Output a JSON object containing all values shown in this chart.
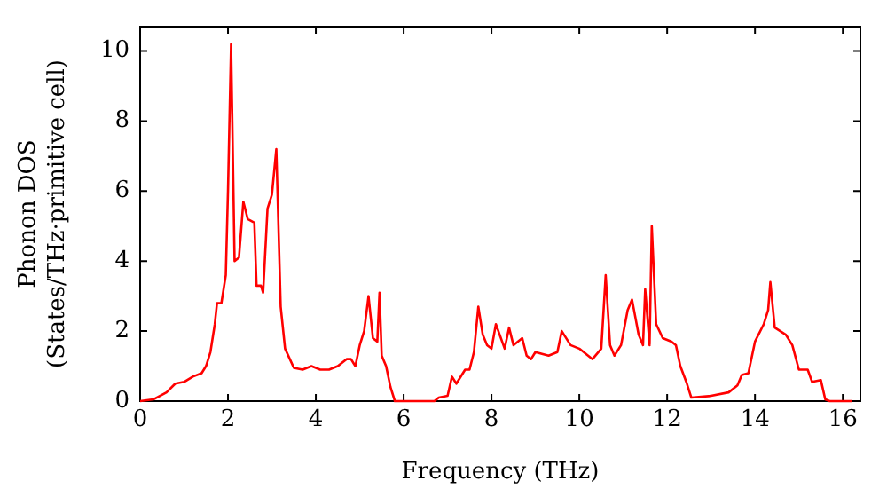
{
  "chart_data": {
    "type": "line",
    "xlabel": "Frequency (THz)",
    "ylabel": "Phonon DOS\n(States/THz·primitive cell)",
    "xlim": [
      0,
      16.4
    ],
    "ylim": [
      0,
      10.7
    ],
    "xticks": [
      0,
      2,
      4,
      6,
      8,
      10,
      12,
      14,
      16
    ],
    "yticks": [
      0,
      2,
      4,
      6,
      8,
      10
    ],
    "grid": false,
    "legend": false,
    "marker": "none",
    "line_style": "solid",
    "series": [
      {
        "color": "#ff0000",
        "x": [
          0,
          0.3,
          0.6,
          0.8,
          1.0,
          1.2,
          1.4,
          1.5,
          1.6,
          1.7,
          1.75,
          1.85,
          1.95,
          2.0,
          2.07,
          2.15,
          2.25,
          2.35,
          2.45,
          2.6,
          2.65,
          2.75,
          2.8,
          2.9,
          3.0,
          3.1,
          3.2,
          3.3,
          3.5,
          3.7,
          3.9,
          4.1,
          4.3,
          4.5,
          4.7,
          4.8,
          4.9,
          5.0,
          5.1,
          5.2,
          5.3,
          5.4,
          5.45,
          5.5,
          5.6,
          5.7,
          5.8,
          6.7,
          6.8,
          7.0,
          7.1,
          7.2,
          7.4,
          7.5,
          7.6,
          7.7,
          7.8,
          7.9,
          8.0,
          8.1,
          8.3,
          8.4,
          8.5,
          8.7,
          8.8,
          8.9,
          9.0,
          9.3,
          9.5,
          9.6,
          9.8,
          10.0,
          10.2,
          10.3,
          10.5,
          10.6,
          10.7,
          10.8,
          10.95,
          11.1,
          11.2,
          11.35,
          11.45,
          11.5,
          11.6,
          11.65,
          11.75,
          11.9,
          12.1,
          12.2,
          12.3,
          12.45,
          12.55,
          13.0,
          13.4,
          13.6,
          13.7,
          13.85,
          14.0,
          14.2,
          14.3,
          14.35,
          14.45,
          14.7,
          14.85,
          15.0,
          15.2,
          15.3,
          15.5,
          15.6,
          15.7,
          16.2
        ],
        "values": [
          0,
          0.05,
          0.25,
          0.5,
          0.55,
          0.7,
          0.8,
          1.0,
          1.4,
          2.2,
          2.8,
          2.8,
          3.6,
          6.0,
          10.2,
          4.0,
          4.1,
          5.7,
          5.2,
          5.1,
          3.3,
          3.3,
          3.1,
          5.5,
          5.9,
          7.2,
          2.7,
          1.5,
          0.95,
          0.9,
          1.0,
          0.9,
          0.9,
          1.0,
          1.2,
          1.2,
          1.0,
          1.6,
          2.0,
          3.0,
          1.8,
          1.7,
          3.1,
          1.3,
          1.0,
          0.4,
          0,
          0,
          0.1,
          0.15,
          0.7,
          0.5,
          0.9,
          0.9,
          1.4,
          2.7,
          1.9,
          1.6,
          1.5,
          2.2,
          1.5,
          2.1,
          1.6,
          1.8,
          1.3,
          1.2,
          1.4,
          1.3,
          1.4,
          2.0,
          1.6,
          1.5,
          1.3,
          1.2,
          1.5,
          3.6,
          1.6,
          1.3,
          1.6,
          2.6,
          2.9,
          1.9,
          1.6,
          3.2,
          1.6,
          5.0,
          2.2,
          1.8,
          1.7,
          1.6,
          1.0,
          0.5,
          0.1,
          0.15,
          0.25,
          0.45,
          0.75,
          0.8,
          1.7,
          2.2,
          2.6,
          3.4,
          2.1,
          1.9,
          1.6,
          0.9,
          0.9,
          0.55,
          0.6,
          0.05,
          0,
          0
        ]
      }
    ]
  }
}
